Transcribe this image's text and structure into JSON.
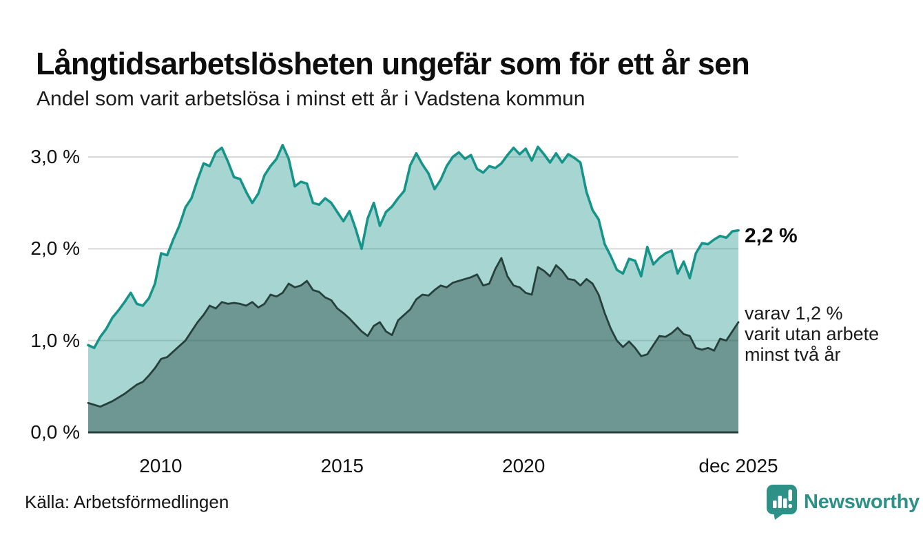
{
  "header": {
    "title": "Långtidsarbetslösheten ungefär som för ett år sen",
    "subtitle": "Andel som varit arbetslösa i minst ett år i Vadstena kommun"
  },
  "chart_data": {
    "type": "area",
    "title": "Långtidsarbetslösheten ungefär som för ett år sen",
    "subtitle": "Andel som varit arbetslösa i minst ett år i Vadstena kommun",
    "unit": "%",
    "x_domain": [
      2008.0,
      2025.92
    ],
    "x_step_months": 2,
    "ylim": [
      0,
      3.3
    ],
    "grid": true,
    "yticks": [
      {
        "value": 0,
        "label": "0,0 %"
      },
      {
        "value": 1,
        "label": "1,0 %"
      },
      {
        "value": 2,
        "label": "2,0 %"
      },
      {
        "value": 3,
        "label": "3,0 %"
      }
    ],
    "xticks": [
      {
        "value": 2010,
        "label": "2010"
      },
      {
        "value": 2015,
        "label": "2015"
      },
      {
        "value": 2020,
        "label": "2020"
      },
      {
        "value": 2025.92,
        "label": "dec 2025"
      }
    ],
    "series": [
      {
        "name": "Andel arbetslösa minst ett år",
        "end_value": 2.2,
        "color": "#17948a",
        "fill": "rgba(23,148,138,0.38)",
        "stroke_width": 3.6,
        "values": [
          0.95,
          0.92,
          1.04,
          1.13,
          1.25,
          1.33,
          1.42,
          1.52,
          1.4,
          1.38,
          1.46,
          1.62,
          1.95,
          1.93,
          2.1,
          2.25,
          2.45,
          2.55,
          2.75,
          2.93,
          2.9,
          3.05,
          3.1,
          2.95,
          2.78,
          2.76,
          2.62,
          2.5,
          2.6,
          2.8,
          2.9,
          2.98,
          3.13,
          2.98,
          2.68,
          2.73,
          2.71,
          2.5,
          2.48,
          2.55,
          2.5,
          2.4,
          2.3,
          2.41,
          2.22,
          2.0,
          2.33,
          2.5,
          2.25,
          2.4,
          2.46,
          2.55,
          2.63,
          2.91,
          3.04,
          2.92,
          2.82,
          2.65,
          2.75,
          2.9,
          3.0,
          3.05,
          2.98,
          3.02,
          2.87,
          2.83,
          2.9,
          2.88,
          2.93,
          3.02,
          3.1,
          3.03,
          3.09,
          2.96,
          3.11,
          3.03,
          2.94,
          3.04,
          2.94,
          3.03,
          2.99,
          2.94,
          2.62,
          2.42,
          2.32,
          2.05,
          1.92,
          1.77,
          1.73,
          1.89,
          1.87,
          1.7,
          2.02,
          1.83,
          1.9,
          1.95,
          1.98,
          1.73,
          1.86,
          1.68,
          1.95,
          2.06,
          2.05,
          2.1,
          2.14,
          2.12,
          2.19,
          2.2
        ]
      },
      {
        "name": "Varav utan arbete minst två år",
        "end_value": 1.2,
        "color": "#26403d",
        "fill": "rgba(32,64,60,0.42)",
        "stroke_width": 2.8,
        "values": [
          0.32,
          0.3,
          0.28,
          0.31,
          0.34,
          0.38,
          0.42,
          0.47,
          0.52,
          0.55,
          0.62,
          0.7,
          0.8,
          0.82,
          0.88,
          0.94,
          1.0,
          1.1,
          1.2,
          1.28,
          1.38,
          1.35,
          1.42,
          1.4,
          1.41,
          1.4,
          1.38,
          1.42,
          1.36,
          1.4,
          1.5,
          1.48,
          1.52,
          1.62,
          1.58,
          1.6,
          1.65,
          1.55,
          1.53,
          1.47,
          1.44,
          1.35,
          1.3,
          1.24,
          1.17,
          1.1,
          1.05,
          1.16,
          1.2,
          1.1,
          1.06,
          1.22,
          1.28,
          1.34,
          1.45,
          1.5,
          1.49,
          1.55,
          1.6,
          1.58,
          1.63,
          1.65,
          1.67,
          1.69,
          1.72,
          1.6,
          1.62,
          1.78,
          1.9,
          1.7,
          1.6,
          1.58,
          1.52,
          1.5,
          1.8,
          1.76,
          1.7,
          1.82,
          1.76,
          1.67,
          1.66,
          1.6,
          1.67,
          1.62,
          1.5,
          1.3,
          1.13,
          1.0,
          0.93,
          0.99,
          0.92,
          0.83,
          0.85,
          0.95,
          1.05,
          1.04,
          1.08,
          1.14,
          1.07,
          1.05,
          0.92,
          0.9,
          0.92,
          0.89,
          1.02,
          1.0,
          1.1,
          1.2
        ]
      }
    ],
    "annotations": {
      "primary": "2,2 %",
      "secondary": "varav 1,2 %\nvarit utan arbete\nminst två år"
    },
    "legend_position": "none"
  },
  "footer": {
    "source": "Källa: Arbetsförmedlingen",
    "logo_text": "Newsworthy"
  },
  "colors": {
    "accent_teal": "#17948a",
    "dark_series": "#26403d",
    "gridline": "#d8d8d8",
    "baseline": "#26403d",
    "text": "#111111",
    "logo_teal": "#2e9187",
    "background": "#ffffff"
  }
}
